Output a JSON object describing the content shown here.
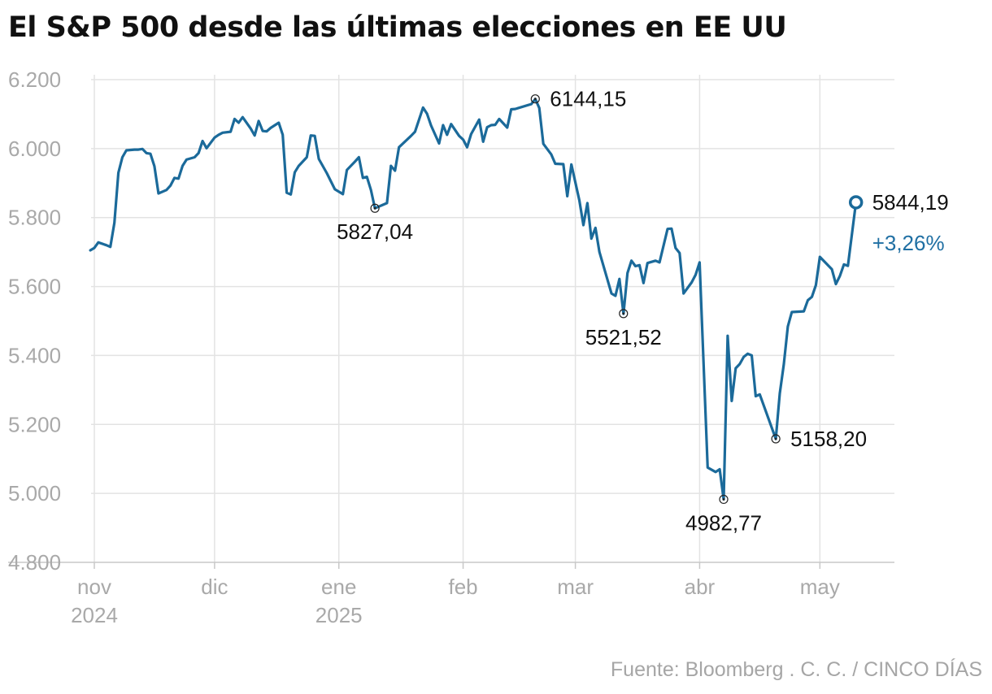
{
  "chart_data": {
    "type": "line",
    "title": "El S&P 500 desde las últimas elecciones en EE UU",
    "source": "Fuente: Bloomberg . C. C. / CINCO DÍAS",
    "ylim": [
      4800,
      6200
    ],
    "y_ticks": [
      {
        "value": 6200,
        "label": "6.200"
      },
      {
        "value": 6000,
        "label": "6.000"
      },
      {
        "value": 5800,
        "label": "5.800"
      },
      {
        "value": 5600,
        "label": "5.600"
      },
      {
        "value": 5400,
        "label": "5.400"
      },
      {
        "value": 5200,
        "label": "5.200"
      },
      {
        "value": 5000,
        "label": "5.000"
      },
      {
        "value": 4800,
        "label": "4.800"
      }
    ],
    "x_ticks": [
      {
        "day": 0,
        "month": "nov",
        "year": "2024"
      },
      {
        "day": 30,
        "month": "dic",
        "year": ""
      },
      {
        "day": 61,
        "month": "ene",
        "year": "2025"
      },
      {
        "day": 92,
        "month": "feb",
        "year": ""
      },
      {
        "day": 120,
        "month": "mar",
        "year": ""
      },
      {
        "day": 151,
        "month": "abr",
        "year": ""
      },
      {
        "day": 181,
        "month": "may",
        "year": ""
      }
    ],
    "x_unit": "days since 1 Nov 2024",
    "xlim": [
      0,
      196
    ],
    "series": [
      {
        "name": "S&P 500",
        "color": "#1b6a9a",
        "points": [
          [
            -1,
            5705
          ],
          [
            0,
            5712
          ],
          [
            1,
            5728
          ],
          [
            3,
            5720
          ],
          [
            4,
            5715
          ],
          [
            5,
            5785
          ],
          [
            6,
            5930
          ],
          [
            7,
            5975
          ],
          [
            8,
            5995
          ],
          [
            10,
            5997
          ],
          [
            11,
            5997
          ],
          [
            12,
            5999
          ],
          [
            13,
            5987
          ],
          [
            14,
            5985
          ],
          [
            15,
            5949
          ],
          [
            16,
            5870
          ],
          [
            18,
            5880
          ],
          [
            19,
            5893
          ],
          [
            20,
            5915
          ],
          [
            21,
            5913
          ],
          [
            22,
            5950
          ],
          [
            23,
            5968
          ],
          [
            25,
            5975
          ],
          [
            26,
            5987
          ],
          [
            27,
            6022
          ],
          [
            28,
            6001
          ],
          [
            30,
            6032
          ],
          [
            31,
            6040
          ],
          [
            32,
            6046
          ],
          [
            34,
            6049
          ],
          [
            35,
            6086
          ],
          [
            36,
            6075
          ],
          [
            37,
            6091
          ],
          [
            39,
            6058
          ],
          [
            40,
            6038
          ],
          [
            41,
            6080
          ],
          [
            42,
            6051
          ],
          [
            43,
            6050
          ],
          [
            44,
            6060
          ],
          [
            46,
            6075
          ],
          [
            47,
            6040
          ],
          [
            48,
            5872
          ],
          [
            49,
            5867
          ],
          [
            50,
            5931
          ],
          [
            51,
            5950
          ],
          [
            53,
            5975
          ],
          [
            54,
            6038
          ],
          [
            55,
            6037
          ],
          [
            56,
            5970
          ],
          [
            58,
            5929
          ],
          [
            60,
            5882
          ],
          [
            62,
            5868
          ],
          [
            63,
            5938
          ],
          [
            65,
            5962
          ],
          [
            66,
            5975
          ],
          [
            67,
            5915
          ],
          [
            68,
            5918
          ],
          [
            69,
            5880
          ],
          [
            70,
            5827
          ],
          [
            72,
            5837
          ],
          [
            73,
            5842
          ],
          [
            74,
            5950
          ],
          [
            75,
            5936
          ],
          [
            76,
            6004
          ],
          [
            79,
            6037
          ],
          [
            80,
            6049
          ],
          [
            82,
            6119
          ],
          [
            83,
            6101
          ],
          [
            84,
            6067
          ],
          [
            86,
            6015
          ],
          [
            87,
            6068
          ],
          [
            88,
            6040
          ],
          [
            89,
            6071
          ],
          [
            91,
            6037
          ],
          [
            92,
            6026
          ],
          [
            93,
            6004
          ],
          [
            94,
            6042
          ],
          [
            96,
            6084
          ],
          [
            97,
            6020
          ],
          [
            98,
            6062
          ],
          [
            99,
            6068
          ],
          [
            100,
            6069
          ],
          [
            101,
            6086
          ],
          [
            103,
            6061
          ],
          [
            104,
            6114
          ],
          [
            105,
            6115
          ],
          [
            109,
            6129
          ],
          [
            110,
            6144
          ],
          [
            111,
            6118
          ],
          [
            112,
            6014
          ],
          [
            114,
            5983
          ],
          [
            115,
            5956
          ],
          [
            117,
            5955
          ],
          [
            118,
            5862
          ],
          [
            119,
            5954
          ],
          [
            121,
            5850
          ],
          [
            122,
            5778
          ],
          [
            123,
            5842
          ],
          [
            124,
            5739
          ],
          [
            125,
            5770
          ],
          [
            126,
            5700
          ],
          [
            129,
            5580
          ],
          [
            130,
            5573
          ],
          [
            131,
            5622
          ],
          [
            132,
            5521
          ],
          [
            133,
            5639
          ],
          [
            134,
            5675
          ],
          [
            135,
            5659
          ],
          [
            136,
            5662
          ],
          [
            137,
            5610
          ],
          [
            138,
            5668
          ],
          [
            140,
            5675
          ],
          [
            141,
            5670
          ],
          [
            143,
            5767
          ],
          [
            144,
            5768
          ],
          [
            145,
            5712
          ],
          [
            146,
            5697
          ],
          [
            147,
            5580
          ],
          [
            149,
            5612
          ],
          [
            150,
            5634
          ],
          [
            151,
            5670
          ],
          [
            153,
            5075
          ],
          [
            155,
            5062
          ],
          [
            156,
            5070
          ],
          [
            157,
            4983
          ],
          [
            158,
            5457
          ],
          [
            159,
            5268
          ],
          [
            160,
            5363
          ],
          [
            161,
            5375
          ],
          [
            162,
            5396
          ],
          [
            163,
            5405
          ],
          [
            164,
            5400
          ],
          [
            165,
            5282
          ],
          [
            166,
            5287
          ],
          [
            170,
            5158
          ],
          [
            171,
            5290
          ],
          [
            172,
            5375
          ],
          [
            173,
            5484
          ],
          [
            174,
            5526
          ],
          [
            177,
            5528
          ],
          [
            178,
            5560
          ],
          [
            179,
            5570
          ],
          [
            180,
            5604
          ],
          [
            181,
            5686
          ],
          [
            184,
            5650
          ],
          [
            185,
            5607
          ],
          [
            186,
            5631
          ],
          [
            187,
            5664
          ],
          [
            188,
            5660
          ],
          [
            190,
            5844
          ]
        ]
      }
    ],
    "annotations": [
      {
        "day": 70,
        "value": 5827.04,
        "label": "5827,04",
        "position": "below"
      },
      {
        "day": 110,
        "value": 6144.15,
        "label": "6144,15",
        "position": "right"
      },
      {
        "day": 132,
        "value": 5521.52,
        "label": "5521,52",
        "position": "below"
      },
      {
        "day": 157,
        "value": 4982.77,
        "label": "4982,77",
        "position": "below"
      },
      {
        "day": 170,
        "value": 5158.2,
        "label": "5158,20",
        "position": "right"
      },
      {
        "day": 190,
        "value": 5844.19,
        "label": "5844,19",
        "position": "right",
        "emphasis": true
      }
    ],
    "change_label": "+3,26%"
  }
}
